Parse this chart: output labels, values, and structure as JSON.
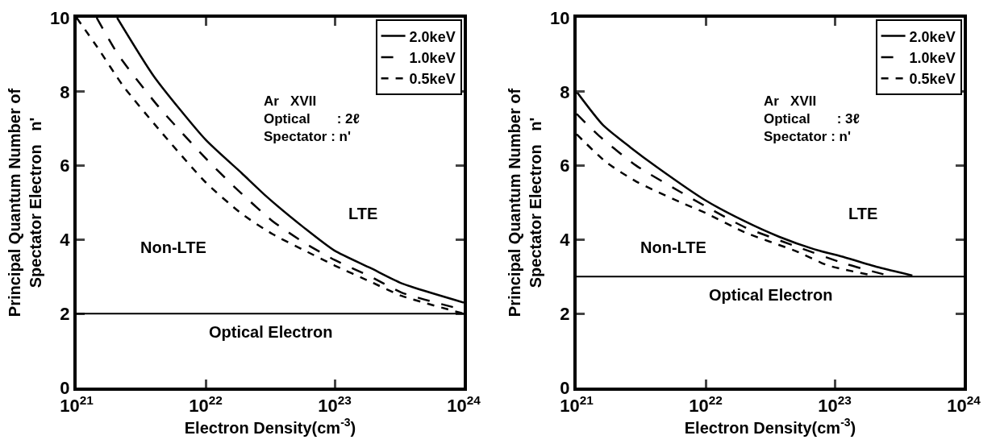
{
  "chart_data": [
    {
      "type": "line",
      "xlabel": "Electron Density(cm$^{-3}$)",
      "ylabel": "Principal Quantum Number of\nSpectator Electron   n'",
      "log": "x",
      "xlim": [
        1e+21,
        1e+24
      ],
      "ylim": [
        0,
        10
      ],
      "xticks": [
        {
          "value": 1e+21,
          "label": "10$^{21}$"
        },
        {
          "value": 1e+22,
          "label": "10$^{22}$"
        },
        {
          "value": 1e+23,
          "label": "10$^{23}$"
        },
        {
          "value": 1e+24,
          "label": "10$^{24}$"
        }
      ],
      "yticks": [
        0,
        2,
        4,
        6,
        8,
        10
      ],
      "grid": false,
      "legend": "top right",
      "annotations": [
        "Non-LTE",
        "LTE",
        "Ar   XVII\nOptical       : 2ℓ\nSpectator : n'"
      ],
      "ref_lines": [
        {
          "axis": "y",
          "value": 2,
          "label": "Optical Electron",
          "color": "#000000",
          "line_style": "solid"
        }
      ],
      "series": [
        {
          "name": "2.0keV",
          "color": "#000000",
          "line_style": "solid",
          "x": [
            2.06e+21,
            4e+21,
            1e+22,
            1.9e+22,
            3e+22,
            5.9e+22,
            1e+23,
            1.9e+23,
            3.3e+23,
            1e+24
          ],
          "values": [
            10,
            8.4,
            6.7,
            5.8,
            5.15,
            4.3,
            3.7,
            3.23,
            2.82,
            2.3
          ]
        },
        {
          "name": "1.0keV",
          "color": "#000000",
          "line_style": "dashed",
          "x": [
            1.43e+21,
            2.1e+21,
            4.3e+21,
            1e+22,
            1.7e+22,
            3.3e+22,
            5.9e+22,
            1e+23,
            1.9e+23,
            3.3e+23,
            1e+24
          ],
          "values": [
            10,
            9.0,
            7.6,
            6.2,
            5.4,
            4.5,
            3.9,
            3.45,
            3.0,
            2.57,
            2.1
          ]
        },
        {
          "name": "0.5keV",
          "color": "#000000",
          "line_style": "dotted",
          "x": [
            1e+21,
            1.45e+21,
            2.3e+21,
            4.3e+21,
            1e+22,
            1.9e+22,
            3.3e+22,
            5.9e+22,
            1e+23,
            1.9e+23,
            3.3e+23,
            1e+24
          ],
          "values": [
            10,
            9.2,
            8.15,
            7.0,
            5.55,
            4.7,
            4.15,
            3.7,
            3.3,
            2.86,
            2.48,
            2.0
          ]
        }
      ]
    },
    {
      "type": "line",
      "xlabel": "Electron Density(cm$^{-3}$)",
      "ylabel": "Principal Quantum Number of\nSpectator Electron   n'",
      "log": "x",
      "xlim": [
        1e+21,
        1e+24
      ],
      "ylim": [
        0,
        10
      ],
      "xticks": [
        {
          "value": 1e+21,
          "label": "10$^{21}$"
        },
        {
          "value": 1e+22,
          "label": "10$^{22}$"
        },
        {
          "value": 1e+23,
          "label": "10$^{23}$"
        },
        {
          "value": 1e+24,
          "label": "10$^{24}$"
        }
      ],
      "yticks": [
        0,
        2,
        4,
        6,
        8,
        10
      ],
      "grid": false,
      "legend": "top right",
      "annotations": [
        "Non-LTE",
        "LTE",
        "Ar   XVII\nOptical       : 3ℓ\nSpectator : n'"
      ],
      "ref_lines": [
        {
          "axis": "y",
          "value": 3,
          "label": "Optical Electron",
          "color": "#000000",
          "line_style": "solid"
        }
      ],
      "series": [
        {
          "name": "2.0keV",
          "color": "#000000",
          "line_style": "solid",
          "x": [
            1e+21,
            1.6e+21,
            2.6e+21,
            4.2e+21,
            1e+22,
            2e+22,
            3.7e+22,
            6.8e+22,
            1.2e+23,
            2.2e+23,
            4e+23
          ],
          "values": [
            8.0,
            7.1,
            6.5,
            5.96,
            5.06,
            4.5,
            4.08,
            3.75,
            3.52,
            3.25,
            3.03
          ]
        },
        {
          "name": "1.0keV",
          "color": "#000000",
          "line_style": "dashed",
          "x": [
            1e+21,
            1.5e+21,
            2.9e+21,
            6.3e+21,
            1e+22,
            2e+22,
            5e+22,
            1.2e+23,
            2.6e+23
          ],
          "values": [
            7.4,
            6.8,
            6.0,
            5.3,
            4.9,
            4.34,
            3.82,
            3.35,
            3.03
          ]
        },
        {
          "name": "0.5keV",
          "color": "#000000",
          "line_style": "dotted",
          "x": [
            1e+21,
            1.7e+21,
            2.9e+21,
            6.3e+21,
            1e+22,
            2e+22,
            5e+22,
            8.9e+22,
            2e+23
          ],
          "values": [
            6.85,
            6.09,
            5.57,
            5.02,
            4.72,
            4.2,
            3.69,
            3.3,
            3.03
          ]
        }
      ]
    }
  ]
}
